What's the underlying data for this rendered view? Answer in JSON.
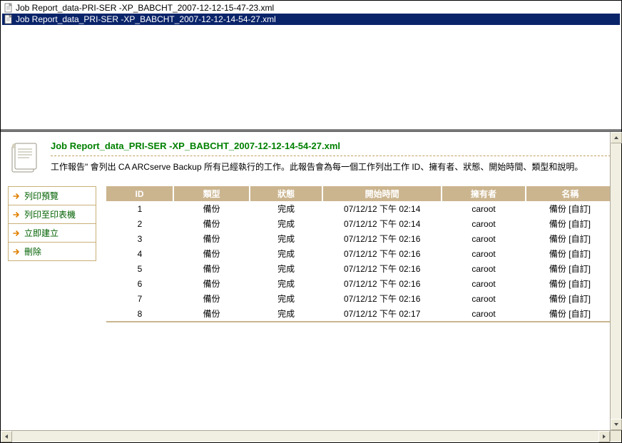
{
  "files": [
    {
      "name": "Job Report_data-PRI-SER -XP_BABCHT_2007-12-12-15-47-23.xml",
      "selected": false
    },
    {
      "name": "Job Report_data_PRI-SER -XP_BABCHT_2007-12-12-14-54-27.xml",
      "selected": true
    }
  ],
  "report": {
    "title": "Job Report_data_PRI-SER -XP_BABCHT_2007-12-12-14-54-27.xml",
    "description": "工作報告\" 會列出 CA ARCserve Backup 所有已經執行的工作。此報告會為每一個工作列出工作 ID、擁有者、狀態、開始時間、類型和說明。"
  },
  "menu": {
    "items": [
      {
        "key": "print-preview",
        "label": "列印預覽"
      },
      {
        "key": "print-to-printer",
        "label": "列印至印表機"
      },
      {
        "key": "create-now",
        "label": "立即建立"
      },
      {
        "key": "delete",
        "label": "刪除"
      }
    ]
  },
  "table": {
    "header_bg": "#cbb58f",
    "header_fg": "#ffffff",
    "row_color": "#000000",
    "columns": [
      {
        "key": "id",
        "label": "ID",
        "width": 72
      },
      {
        "key": "type",
        "label": "類型",
        "width": 82
      },
      {
        "key": "status",
        "label": "狀態",
        "width": 78
      },
      {
        "key": "start",
        "label": "開始時間",
        "width": 128
      },
      {
        "key": "owner",
        "label": "擁有者",
        "width": 90
      },
      {
        "key": "name",
        "label": "名稱",
        "width": 95
      }
    ],
    "rows": [
      {
        "id": "1",
        "type": "備份",
        "status": "完成",
        "start": "07/12/12 下午 02:14",
        "owner": "caroot",
        "name": "備份 [自訂]"
      },
      {
        "id": "2",
        "type": "備份",
        "status": "完成",
        "start": "07/12/12 下午 02:14",
        "owner": "caroot",
        "name": "備份 [自訂]"
      },
      {
        "id": "3",
        "type": "備份",
        "status": "完成",
        "start": "07/12/12 下午 02:16",
        "owner": "caroot",
        "name": "備份 [自訂]"
      },
      {
        "id": "4",
        "type": "備份",
        "status": "完成",
        "start": "07/12/12 下午 02:16",
        "owner": "caroot",
        "name": "備份 [自訂]"
      },
      {
        "id": "5",
        "type": "備份",
        "status": "完成",
        "start": "07/12/12 下午 02:16",
        "owner": "caroot",
        "name": "備份 [自訂]"
      },
      {
        "id": "6",
        "type": "備份",
        "status": "完成",
        "start": "07/12/12 下午 02:16",
        "owner": "caroot",
        "name": "備份 [自訂]"
      },
      {
        "id": "7",
        "type": "備份",
        "status": "完成",
        "start": "07/12/12 下午 02:16",
        "owner": "caroot",
        "name": "備份 [自訂]"
      },
      {
        "id": "8",
        "type": "備份",
        "status": "完成",
        "start": "07/12/12 下午 02:17",
        "owner": "caroot",
        "name": "備份 [自訂]"
      }
    ]
  },
  "colors": {
    "selection_bg": "#0a246a",
    "selection_fg": "#ffffff",
    "title_green": "#008000",
    "menu_border": "#c8b078",
    "scroll_bg": "#ece9d8"
  }
}
